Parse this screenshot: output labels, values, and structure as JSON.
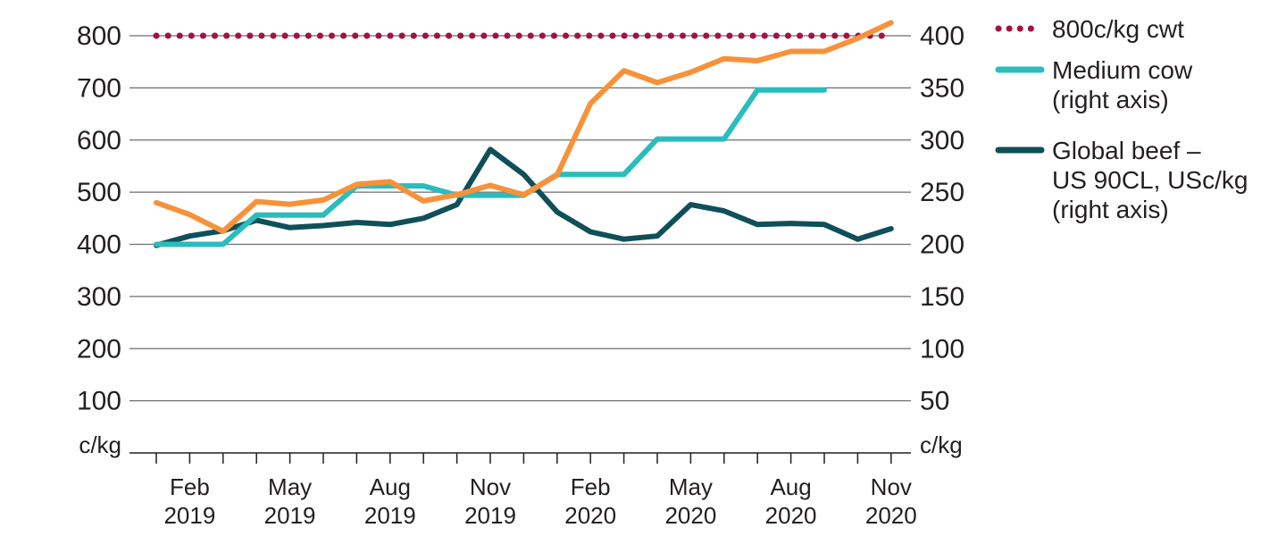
{
  "chart_data": {
    "type": "line",
    "left_axis": {
      "unit": "c/kg",
      "ylim": [
        0,
        800
      ],
      "ticks": [
        "100",
        "200",
        "300",
        "400",
        "500",
        "600",
        "700",
        "800"
      ],
      "tick_values": [
        100,
        200,
        300,
        400,
        500,
        600,
        700,
        800
      ]
    },
    "right_axis": {
      "unit": "c/kg",
      "ylim": [
        0,
        400
      ],
      "ticks": [
        "50",
        "100",
        "150",
        "200",
        "250",
        "300",
        "350",
        "400"
      ],
      "tick_values": [
        50,
        100,
        150,
        200,
        250,
        300,
        350,
        400
      ]
    },
    "x_labels": [
      {
        "month": "Feb",
        "year": "2019",
        "date": "2019-02"
      },
      {
        "month": "May",
        "year": "2019",
        "date": "2019-05"
      },
      {
        "month": "Aug",
        "year": "2019",
        "date": "2019-08"
      },
      {
        "month": "Nov",
        "year": "2019",
        "date": "2019-11"
      },
      {
        "month": "Feb",
        "year": "2020",
        "date": "2020-02"
      },
      {
        "month": "May",
        "year": "2020",
        "date": "2020-05"
      },
      {
        "month": "Aug",
        "year": "2020",
        "date": "2020-08"
      },
      {
        "month": "Nov",
        "year": "2020",
        "date": "2020-11"
      }
    ],
    "x": [
      "2019-01",
      "2019-02",
      "2019-03",
      "2019-04",
      "2019-05",
      "2019-06",
      "2019-07",
      "2019-08",
      "2019-09",
      "2019-10",
      "2019-11",
      "2019-12",
      "2020-01",
      "2020-02",
      "2020-03",
      "2020-04",
      "2020-05",
      "2020-06",
      "2020-07",
      "2020-08",
      "2020-09",
      "2020-10",
      "2020-11"
    ],
    "series": [
      {
        "name": "800c/kg cwt",
        "axis": "left",
        "style": "dotted",
        "color": "#a5123f",
        "values": [
          800,
          800,
          800,
          800,
          800,
          800,
          800,
          800,
          800,
          800,
          800,
          800,
          800,
          800,
          800,
          800,
          800,
          800,
          800,
          800,
          800,
          800,
          800
        ]
      },
      {
        "name": "",
        "axis": "left",
        "style": "solid",
        "color": "#f7923a",
        "values": [
          480,
          457,
          425,
          482,
          477,
          485,
          515,
          520,
          483,
          495,
          513,
          495,
          533,
          670,
          733,
          710,
          730,
          756,
          752,
          770,
          770,
          795,
          825
        ]
      },
      {
        "name": "Medium cow\n(right axis)",
        "axis": "right",
        "style": "solid",
        "color": "#2bbcbc",
        "values": [
          200,
          200,
          200,
          228,
          228,
          228,
          256,
          256,
          256,
          247,
          247,
          247,
          267,
          267,
          267,
          301,
          301,
          301,
          348,
          348,
          348,
          null,
          null
        ]
      },
      {
        "name": "Global beef –\nUS 90CL, USc/kg\n(right axis)",
        "axis": "right",
        "style": "solid",
        "color": "#0f4f5a",
        "values": [
          199,
          208,
          213,
          223,
          216,
          218,
          221,
          219,
          225,
          238,
          291,
          267,
          231,
          212,
          205,
          208,
          238,
          232,
          219,
          220,
          219,
          205,
          215
        ]
      }
    ],
    "legend": {
      "placement": "right",
      "entries": [
        {
          "lines": [
            "800c/kg cwt"
          ],
          "color": "#a5123f",
          "style": "dotted"
        },
        {
          "lines": [
            "Medium cow",
            "(right axis)"
          ],
          "color": "#2bbcbc",
          "style": "solid"
        },
        {
          "lines": [
            "Global beef –",
            "US 90CL, USc/kg",
            "(right axis)"
          ],
          "color": "#0f4f5a",
          "style": "solid"
        }
      ]
    },
    "grid": "horizontal"
  }
}
